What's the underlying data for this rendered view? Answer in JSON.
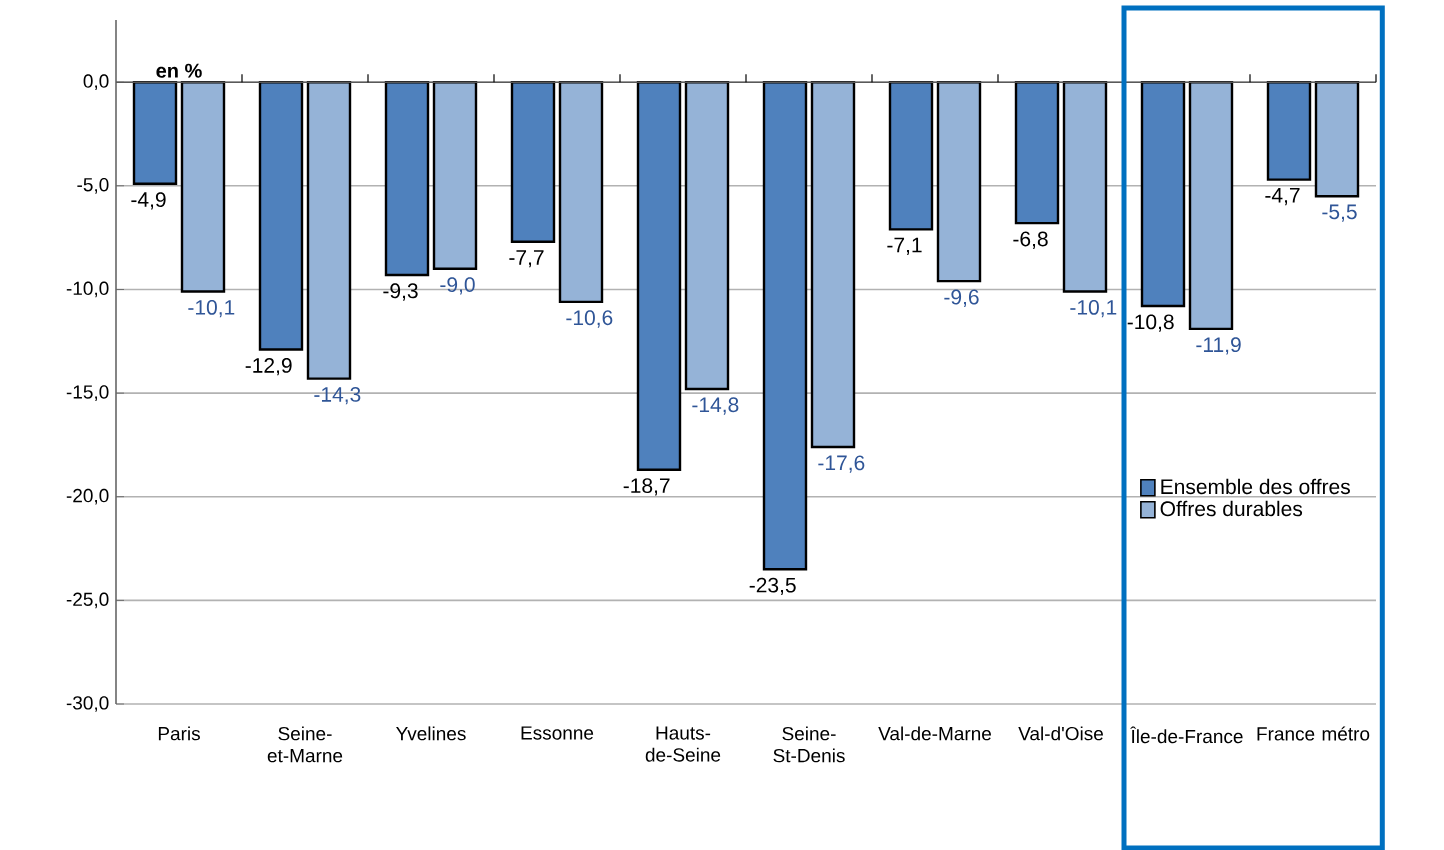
{
  "chart_data": {
    "type": "bar",
    "categories": [
      "Paris",
      "Seine-et-Marne",
      "Yvelines",
      "Essonne",
      "Hauts-de-Seine",
      "Seine-St-Denis",
      "Val-de-Marne",
      "Val-d'Oise",
      "Île-de-France",
      "France métro"
    ],
    "series": [
      {
        "name": "Ensemble des offres",
        "color": "#4f81bd",
        "values": [
          -4.9,
          -12.9,
          -9.3,
          -7.7,
          -18.7,
          -23.5,
          -7.1,
          -6.8,
          -10.8,
          -4.7
        ],
        "value_labels": [
          "-4,9",
          "-12,9",
          "-9,3",
          "-7,7",
          "-18,7",
          "-23,5",
          "-7,1",
          "-6,8",
          "-10,8",
          "-4,7"
        ]
      },
      {
        "name": "Offres durables",
        "color": "#95b3d7",
        "values": [
          -10.1,
          -14.3,
          -9.0,
          -10.6,
          -14.8,
          -17.6,
          -9.6,
          -10.1,
          -11.9,
          -5.5
        ],
        "value_labels": [
          "-10,1",
          "-14,3",
          "-9,0",
          "-10,6",
          "-14,8",
          "-17,6",
          "-9,6",
          "-10,1",
          "-11,9",
          "-5,5"
        ]
      }
    ],
    "ylim": [
      -30,
      3
    ],
    "yticks": [
      {
        "value": 0,
        "label": "0,0"
      },
      {
        "value": -5,
        "label": "-5,0"
      },
      {
        "value": -10,
        "label": "-10,0"
      },
      {
        "value": -15,
        "label": "-15,0"
      },
      {
        "value": -20,
        "label": "-20,0"
      },
      {
        "value": -25,
        "label": "-25,0"
      },
      {
        "value": -30,
        "label": "-30,0"
      }
    ],
    "grid": "y",
    "legend": "right",
    "annotations": [
      "en %"
    ]
  }
}
